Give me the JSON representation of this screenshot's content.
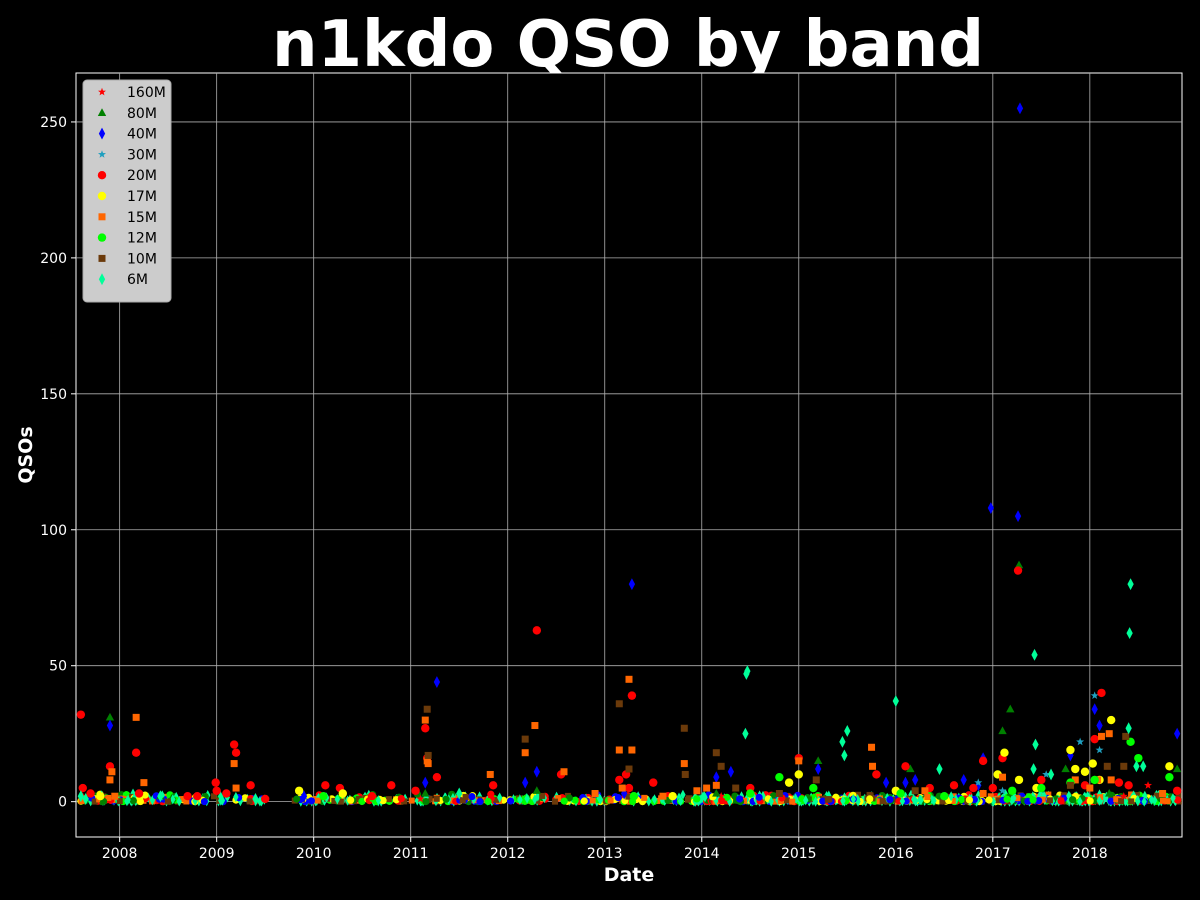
{
  "chart_data": {
    "type": "scatter",
    "title": "n1kdo QSO by band",
    "xlabel": "Date",
    "ylabel": "QSOs",
    "xlim": [
      2007.55,
      2018.95
    ],
    "ylim": [
      -13,
      268
    ],
    "x_ticks": [
      "2008",
      "2009",
      "2010",
      "2011",
      "2012",
      "2013",
      "2014",
      "2015",
      "2016",
      "2017",
      "2018"
    ],
    "y_ticks": [
      0,
      50,
      100,
      150,
      200,
      250
    ],
    "grid": true,
    "legend_position": "top-left",
    "series": [
      {
        "name": "160M",
        "color": "#ff0000",
        "marker": "star",
        "x": [
          2007.62,
          2011.1,
          2014.2,
          2016.9,
          2017.7,
          2018.35,
          2018.6
        ],
        "y": [
          2,
          1,
          2,
          3,
          1,
          2,
          6
        ]
      },
      {
        "name": "80M",
        "color": "#008000",
        "marker": "triangle",
        "x": [
          2007.9,
          2008.42,
          2011.15,
          2012.3,
          2013.25,
          2014.15,
          2015.2,
          2016.15,
          2017.1,
          2017.18,
          2017.27,
          2017.75,
          2018.05,
          2018.2,
          2018.9
        ],
        "y": [
          31,
          2,
          3,
          4,
          5,
          3,
          15,
          12,
          26,
          34,
          87,
          12,
          8,
          3,
          12
        ]
      },
      {
        "name": "40M",
        "color": "#0000ff",
        "marker": "diamond",
        "x": [
          2007.9,
          2009.9,
          2011.15,
          2011.27,
          2012.18,
          2012.3,
          2013.2,
          2013.28,
          2014.15,
          2014.3,
          2015.2,
          2015.9,
          2016.1,
          2016.2,
          2016.7,
          2016.85,
          2016.9,
          2016.98,
          2017.26,
          2017.28,
          2017.8,
          2018.05,
          2018.1,
          2018.9
        ],
        "y": [
          28,
          2,
          7,
          44,
          7,
          11,
          3,
          80,
          9,
          11,
          12,
          7,
          7,
          8,
          8,
          6,
          16,
          108,
          105,
          255,
          17,
          34,
          28,
          25
        ]
      },
      {
        "name": "30M",
        "color": "#1f9fbf",
        "marker": "star",
        "x": [
          2013.3,
          2014.5,
          2016.85,
          2017.1,
          2017.55,
          2017.9,
          2018.05,
          2018.1
        ],
        "y": [
          2,
          3,
          7,
          4,
          10,
          22,
          39,
          19
        ]
      },
      {
        "name": "20M",
        "color": "#ff0000",
        "marker": "circle",
        "x": [
          2007.6,
          2007.62,
          2007.7,
          2007.9,
          2008.17,
          2008.2,
          2008.7,
          2008.8,
          2008.99,
          2009.0,
          2009.1,
          2009.18,
          2009.2,
          2009.35,
          2009.5,
          2010.12,
          2010.27,
          2010.6,
          2010.8,
          2011.05,
          2011.15,
          2011.17,
          2011.27,
          2011.85,
          2012.3,
          2012.55,
          2013.15,
          2013.22,
          2013.25,
          2013.28,
          2013.5,
          2014.5,
          2015.0,
          2015.8,
          2016.1,
          2016.35,
          2016.6,
          2016.8,
          2016.9,
          2017.0,
          2017.1,
          2017.26,
          2017.5,
          2017.95,
          2018.05,
          2018.12,
          2018.3,
          2018.4,
          2018.9
        ],
        "y": [
          32,
          5,
          3,
          13,
          18,
          3,
          2,
          2,
          7,
          4,
          3,
          21,
          18,
          6,
          1,
          6,
          5,
          2,
          6,
          4,
          27,
          16,
          9,
          6,
          63,
          10,
          8,
          10,
          5,
          39,
          7,
          5,
          16,
          10,
          13,
          5,
          6,
          5,
          15,
          5,
          16,
          85,
          8,
          6,
          23,
          40,
          7,
          6,
          4
        ]
      },
      {
        "name": "17M",
        "color": "#ffff00",
        "marker": "circle",
        "x": [
          2007.8,
          2009.85,
          2010.3,
          2013.7,
          2014.9,
          2015.0,
          2016.0,
          2017.05,
          2017.12,
          2017.27,
          2017.45,
          2017.8,
          2017.85,
          2017.95,
          2018.03,
          2018.1,
          2018.22,
          2018.82
        ],
        "y": [
          2,
          4,
          3,
          2,
          7,
          10,
          4,
          10,
          18,
          8,
          5,
          19,
          12,
          11,
          14,
          8,
          30,
          13
        ]
      },
      {
        "name": "15M",
        "color": "#ff6600",
        "marker": "square",
        "x": [
          2007.9,
          2007.92,
          2007.95,
          2008.17,
          2008.25,
          2009.18,
          2009.2,
          2011.15,
          2011.17,
          2011.18,
          2011.82,
          2012.18,
          2012.28,
          2012.58,
          2012.9,
          2013.15,
          2013.18,
          2013.25,
          2013.28,
          2013.6,
          2013.82,
          2013.95,
          2014.05,
          2014.15,
          2015.0,
          2015.75,
          2015.76,
          2016.3,
          2016.9,
          2017.1,
          2017.85,
          2018.0,
          2018.08,
          2018.12,
          2018.2,
          2018.22,
          2018.75
        ],
        "y": [
          8,
          11,
          2,
          31,
          7,
          14,
          5,
          30,
          15,
          14,
          10,
          18,
          28,
          11,
          3,
          19,
          5,
          45,
          19,
          2,
          14,
          4,
          5,
          6,
          15,
          20,
          13,
          4,
          3,
          9,
          8,
          5,
          8,
          24,
          25,
          8,
          3
        ]
      },
      {
        "name": "12M",
        "color": "#00ff00",
        "marker": "circle",
        "x": [
          2010.1,
          2013.3,
          2014.5,
          2014.8,
          2015.15,
          2016.05,
          2016.5,
          2017.2,
          2017.5,
          2017.8,
          2018.05,
          2018.42,
          2018.5,
          2018.82
        ],
        "y": [
          2,
          2,
          3,
          9,
          5,
          3,
          2,
          4,
          5,
          7,
          8,
          22,
          16,
          9
        ]
      },
      {
        "name": "10M",
        "color": "#6b3a0a",
        "marker": "square",
        "x": [
          2011.17,
          2011.18,
          2012.18,
          2013.15,
          2013.25,
          2013.82,
          2013.83,
          2014.15,
          2014.2,
          2014.35,
          2014.8,
          2015.18,
          2016.2,
          2017.8,
          2018.18,
          2018.35,
          2018.37
        ],
        "y": [
          34,
          17,
          23,
          36,
          12,
          27,
          10,
          18,
          13,
          5,
          3,
          8,
          4,
          6,
          13,
          13,
          24
        ]
      },
      {
        "name": "6M",
        "color": "#00ff99",
        "marker": "diamond",
        "x": [
          2007.6,
          2007.65,
          2008.42,
          2009.4,
          2011.5,
          2014.45,
          2014.46,
          2014.47,
          2015.45,
          2015.47,
          2015.5,
          2016.0,
          2016.45,
          2017.42,
          2017.43,
          2017.44,
          2017.6,
          2018.4,
          2018.41,
          2018.42,
          2018.48,
          2018.55
        ],
        "y": [
          2,
          1,
          2,
          1,
          3,
          25,
          47,
          48,
          22,
          17,
          26,
          37,
          12,
          12,
          54,
          21,
          10,
          27,
          62,
          80,
          13,
          13
        ]
      }
    ],
    "noise": {
      "seed": 7,
      "count": 1800,
      "ymax": 3,
      "colors": [
        "#00ff99",
        "#00ff99",
        "#00ff99",
        "#ff6600",
        "#ff0000",
        "#0000ff",
        "#6b3a0a",
        "#ffff00",
        "#00ff00",
        "#008000"
      ]
    }
  }
}
